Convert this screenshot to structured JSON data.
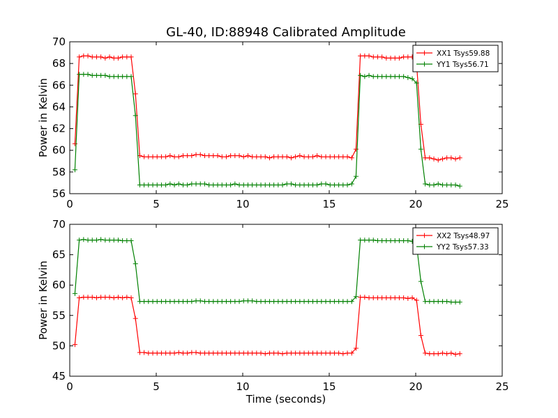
{
  "title": "GL-40, ID:88948 Calibrated Amplitude",
  "colors": {
    "red": "#ff0000",
    "green": "#008000"
  },
  "chart_data": [
    {
      "type": "line",
      "xlabel": "",
      "ylabel": "Power in Kelvin",
      "xlim": [
        0,
        25
      ],
      "ylim": [
        56,
        70
      ],
      "xticks": [
        "0",
        "5",
        "10",
        "15",
        "20",
        "25"
      ],
      "yticks": [
        "56",
        "58",
        "60",
        "62",
        "64",
        "66",
        "68",
        "70"
      ],
      "grid": false,
      "legend_position": "top-right",
      "x": [
        0.3,
        0.55,
        0.8,
        1.05,
        1.3,
        1.55,
        1.8,
        2.05,
        2.3,
        2.55,
        2.8,
        3.05,
        3.3,
        3.55,
        3.8,
        4.05,
        4.3,
        4.55,
        4.8,
        5.05,
        5.3,
        5.55,
        5.8,
        6.05,
        6.3,
        6.55,
        6.8,
        7.05,
        7.3,
        7.55,
        7.8,
        8.05,
        8.3,
        8.55,
        8.8,
        9.05,
        9.3,
        9.55,
        9.8,
        10.05,
        10.3,
        10.55,
        10.8,
        11.05,
        11.3,
        11.55,
        11.8,
        12.05,
        12.3,
        12.55,
        12.8,
        13.05,
        13.3,
        13.55,
        13.8,
        14.05,
        14.3,
        14.55,
        14.8,
        15.05,
        15.3,
        15.55,
        15.8,
        16.05,
        16.3,
        16.55,
        16.8,
        17.05,
        17.3,
        17.55,
        17.8,
        18.05,
        18.3,
        18.55,
        18.8,
        19.05,
        19.3,
        19.55,
        19.8,
        20.05,
        20.3,
        20.55,
        20.8,
        21.05,
        21.3,
        21.55,
        21.8,
        22.05,
        22.3,
        22.55
      ],
      "series": [
        {
          "name": "XX1 Tsys59.88",
          "color": "#ff0000",
          "values": [
            60.6,
            68.6,
            68.7,
            68.7,
            68.6,
            68.6,
            68.6,
            68.5,
            68.6,
            68.5,
            68.5,
            68.6,
            68.6,
            68.6,
            65.2,
            59.5,
            59.4,
            59.4,
            59.4,
            59.4,
            59.4,
            59.4,
            59.5,
            59.4,
            59.4,
            59.5,
            59.5,
            59.5,
            59.6,
            59.6,
            59.5,
            59.5,
            59.5,
            59.5,
            59.4,
            59.4,
            59.5,
            59.5,
            59.5,
            59.4,
            59.5,
            59.4,
            59.4,
            59.4,
            59.4,
            59.3,
            59.4,
            59.4,
            59.4,
            59.4,
            59.3,
            59.4,
            59.5,
            59.4,
            59.4,
            59.4,
            59.5,
            59.4,
            59.4,
            59.4,
            59.4,
            59.4,
            59.4,
            59.4,
            59.3,
            60.1,
            68.7,
            68.7,
            68.7,
            68.6,
            68.6,
            68.6,
            68.5,
            68.5,
            68.5,
            68.5,
            68.6,
            68.6,
            68.6,
            68.0,
            62.4,
            59.3,
            59.3,
            59.2,
            59.1,
            59.2,
            59.3,
            59.3,
            59.2,
            59.3
          ]
        },
        {
          "name": "YY1 Tsys56.71",
          "color": "#008000",
          "values": [
            58.2,
            67.0,
            67.0,
            67.0,
            66.9,
            66.9,
            66.9,
            66.9,
            66.8,
            66.8,
            66.8,
            66.8,
            66.8,
            66.8,
            63.2,
            56.8,
            56.8,
            56.8,
            56.8,
            56.8,
            56.8,
            56.8,
            56.9,
            56.8,
            56.9,
            56.8,
            56.8,
            56.9,
            56.9,
            56.9,
            56.9,
            56.8,
            56.8,
            56.8,
            56.8,
            56.8,
            56.8,
            56.9,
            56.8,
            56.8,
            56.8,
            56.8,
            56.8,
            56.8,
            56.8,
            56.8,
            56.8,
            56.8,
            56.8,
            56.9,
            56.9,
            56.8,
            56.8,
            56.8,
            56.8,
            56.8,
            56.8,
            56.9,
            56.9,
            56.8,
            56.8,
            56.8,
            56.8,
            56.8,
            56.9,
            57.6,
            66.9,
            66.8,
            66.9,
            66.8,
            66.8,
            66.8,
            66.8,
            66.8,
            66.8,
            66.8,
            66.8,
            66.7,
            66.6,
            66.2,
            60.1,
            56.9,
            56.8,
            56.8,
            56.9,
            56.8,
            56.8,
            56.8,
            56.8,
            56.7
          ]
        }
      ]
    },
    {
      "type": "line",
      "xlabel": "Time (seconds)",
      "ylabel": "Power in Kelvin",
      "xlim": [
        0,
        25
      ],
      "ylim": [
        45,
        70
      ],
      "xticks": [
        "0",
        "5",
        "10",
        "15",
        "20",
        "25"
      ],
      "yticks": [
        "45",
        "50",
        "55",
        "60",
        "65",
        "70"
      ],
      "grid": false,
      "legend_position": "top-right",
      "x": [
        0.3,
        0.55,
        0.8,
        1.05,
        1.3,
        1.55,
        1.8,
        2.05,
        2.3,
        2.55,
        2.8,
        3.05,
        3.3,
        3.55,
        3.8,
        4.05,
        4.3,
        4.55,
        4.8,
        5.05,
        5.3,
        5.55,
        5.8,
        6.05,
        6.3,
        6.55,
        6.8,
        7.05,
        7.3,
        7.55,
        7.8,
        8.05,
        8.3,
        8.55,
        8.8,
        9.05,
        9.3,
        9.55,
        9.8,
        10.05,
        10.3,
        10.55,
        10.8,
        11.05,
        11.3,
        11.55,
        11.8,
        12.05,
        12.3,
        12.55,
        12.8,
        13.05,
        13.3,
        13.55,
        13.8,
        14.05,
        14.3,
        14.55,
        14.8,
        15.05,
        15.3,
        15.55,
        15.8,
        16.05,
        16.3,
        16.55,
        16.8,
        17.05,
        17.3,
        17.55,
        17.8,
        18.05,
        18.3,
        18.55,
        18.8,
        19.05,
        19.3,
        19.55,
        19.8,
        20.05,
        20.3,
        20.55,
        20.8,
        21.05,
        21.3,
        21.55,
        21.8,
        22.05,
        22.3,
        22.55
      ],
      "series": [
        {
          "name": "XX2 Tsys48.97",
          "color": "#ff0000",
          "values": [
            50.2,
            57.9,
            58.0,
            58.0,
            58.0,
            57.9,
            58.0,
            58.0,
            58.0,
            57.9,
            58.0,
            57.9,
            58.0,
            57.9,
            54.5,
            48.9,
            48.9,
            48.8,
            48.8,
            48.8,
            48.8,
            48.8,
            48.8,
            48.8,
            48.9,
            48.8,
            48.8,
            48.9,
            48.9,
            48.8,
            48.8,
            48.8,
            48.8,
            48.8,
            48.8,
            48.8,
            48.8,
            48.8,
            48.8,
            48.8,
            48.8,
            48.8,
            48.8,
            48.8,
            48.7,
            48.8,
            48.8,
            48.8,
            48.7,
            48.8,
            48.8,
            48.8,
            48.8,
            48.8,
            48.8,
            48.8,
            48.8,
            48.8,
            48.8,
            48.8,
            48.8,
            48.8,
            48.7,
            48.8,
            48.8,
            49.6,
            58.0,
            58.0,
            57.9,
            57.9,
            57.9,
            57.9,
            57.9,
            57.9,
            57.9,
            57.9,
            57.9,
            57.8,
            57.9,
            57.5,
            51.7,
            48.8,
            48.7,
            48.7,
            48.7,
            48.8,
            48.7,
            48.8,
            48.6,
            48.7
          ]
        },
        {
          "name": "YY2 Tsys57.33",
          "color": "#008000",
          "values": [
            58.6,
            67.4,
            67.5,
            67.4,
            67.4,
            67.4,
            67.5,
            67.4,
            67.4,
            67.4,
            67.4,
            67.3,
            67.3,
            67.3,
            63.5,
            57.3,
            57.3,
            57.3,
            57.3,
            57.3,
            57.3,
            57.3,
            57.3,
            57.3,
            57.3,
            57.3,
            57.3,
            57.3,
            57.4,
            57.4,
            57.3,
            57.3,
            57.3,
            57.3,
            57.3,
            57.3,
            57.3,
            57.3,
            57.3,
            57.4,
            57.4,
            57.4,
            57.3,
            57.3,
            57.3,
            57.3,
            57.3,
            57.3,
            57.3,
            57.3,
            57.3,
            57.3,
            57.3,
            57.3,
            57.3,
            57.3,
            57.3,
            57.3,
            57.3,
            57.3,
            57.3,
            57.3,
            57.3,
            57.3,
            57.3,
            58.1,
            67.4,
            67.4,
            67.4,
            67.4,
            67.3,
            67.3,
            67.3,
            67.3,
            67.3,
            67.3,
            67.3,
            67.3,
            67.2,
            66.7,
            60.6,
            57.3,
            57.3,
            57.3,
            57.3,
            57.3,
            57.3,
            57.2,
            57.2,
            57.2
          ]
        }
      ]
    }
  ]
}
